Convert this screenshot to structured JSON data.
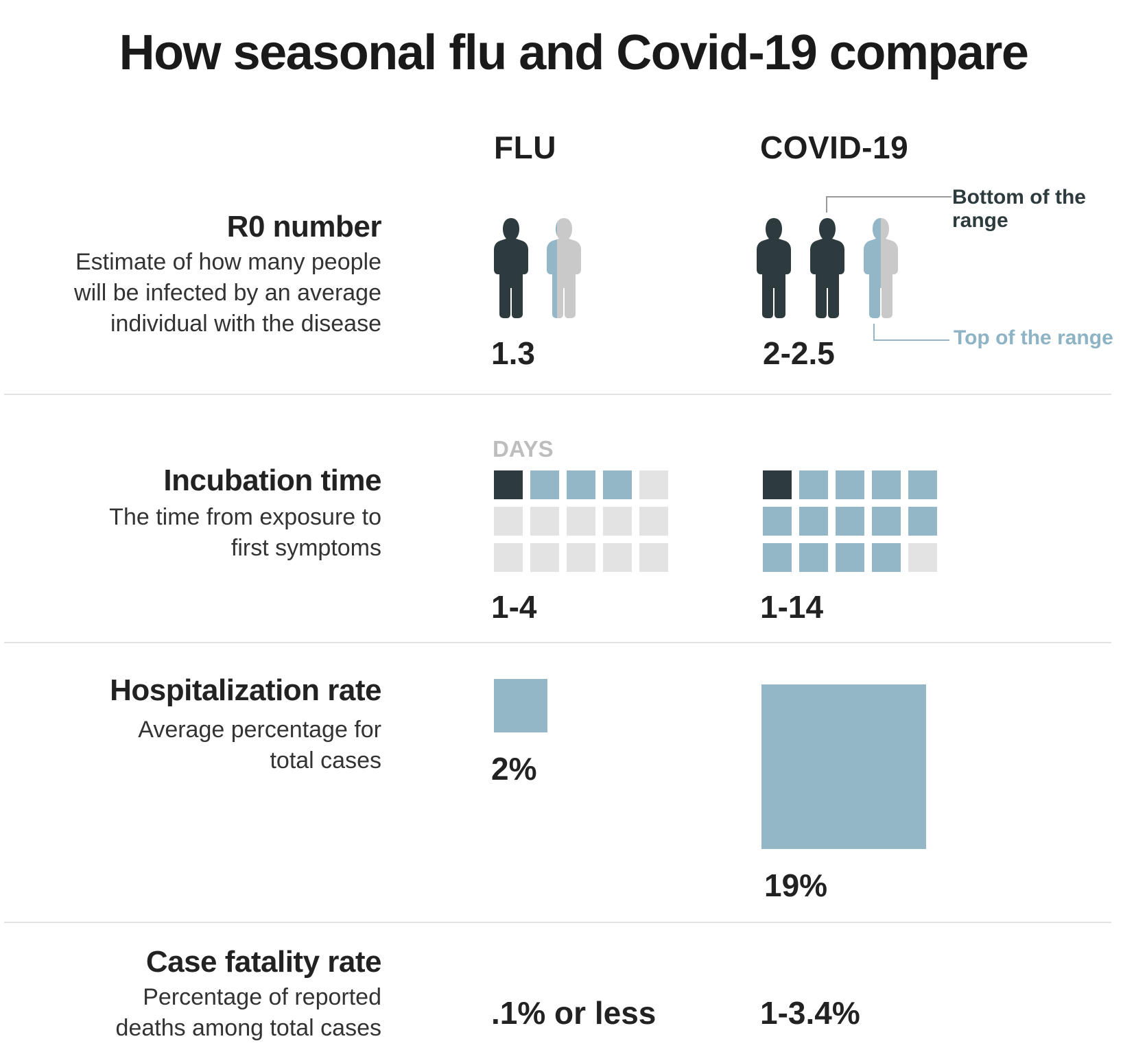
{
  "title": "How seasonal flu and Covid-19 compare",
  "columns": {
    "flu": "FLU",
    "covid": "COVID-19"
  },
  "colors": {
    "dark": "#2e3b3e",
    "light_blue": "#93b7c6",
    "light_gray": "#e3e3e3",
    "person_gray": "#c9c9c9"
  },
  "rows": {
    "r0": {
      "title": "R0 number",
      "desc_lines": [
        "Estimate of how many people",
        "will be infected by an average",
        "individual with the disease"
      ],
      "flu_value": "1.3",
      "covid_value": "2-2.5",
      "flu_people": [
        1,
        0.3
      ],
      "covid_people": [
        1,
        1,
        0.5
      ],
      "annotations": {
        "bottom": "Bottom of the range",
        "top": "Top of the range"
      }
    },
    "incubation": {
      "title": "Incubation time",
      "desc_lines": [
        "The time from exposure to",
        "first symptoms"
      ],
      "unit": "DAYS",
      "flu_value": "1-4",
      "covid_value": "1-14",
      "flu_days": {
        "min": 1,
        "max": 4,
        "cells": 15
      },
      "covid_days": {
        "min": 1,
        "max": 14,
        "cells": 15
      }
    },
    "hospitalization": {
      "title": "Hospitalization rate",
      "desc_lines": [
        "Average percentage for",
        "total cases"
      ],
      "flu_value": "2%",
      "covid_value": "19%",
      "flu_percent": 2,
      "covid_percent": 19
    },
    "fatality": {
      "title": "Case fatality rate",
      "desc_lines": [
        "Percentage of reported",
        "deaths among total cases"
      ],
      "flu_value": ".1% or less",
      "covid_value": "1-3.4%"
    }
  }
}
